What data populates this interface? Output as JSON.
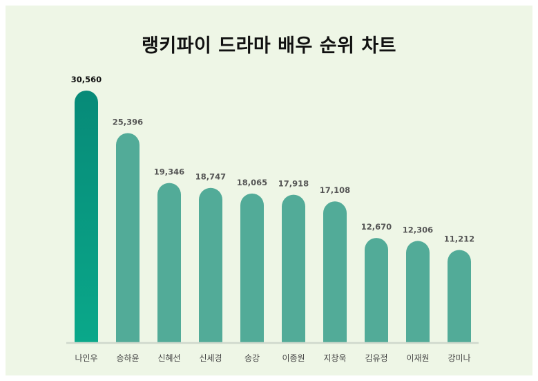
{
  "chart_data": {
    "type": "bar",
    "title": "랭키파이 드라마 배우 순위 차트",
    "categories": [
      "나인우",
      "송하윤",
      "신혜선",
      "신세경",
      "송강",
      "이종원",
      "지창욱",
      "김유정",
      "이재원",
      "강미나"
    ],
    "values": [
      30560,
      25396,
      19346,
      18747,
      18065,
      17918,
      17108,
      12670,
      12306,
      11212
    ],
    "value_labels": [
      "30,560",
      "25,396",
      "19,346",
      "18,747",
      "18,065",
      "17,918",
      "17,108",
      "12,670",
      "12,306",
      "11,212"
    ],
    "ylim": [
      0,
      30560
    ],
    "grid": false,
    "legend": "none",
    "colors": {
      "highlight_top": "#078a78",
      "highlight_bottom": "#0aa88a",
      "bar": "#52ab98",
      "background": "#eef6e6",
      "baseline": "#cfd8cc"
    }
  }
}
